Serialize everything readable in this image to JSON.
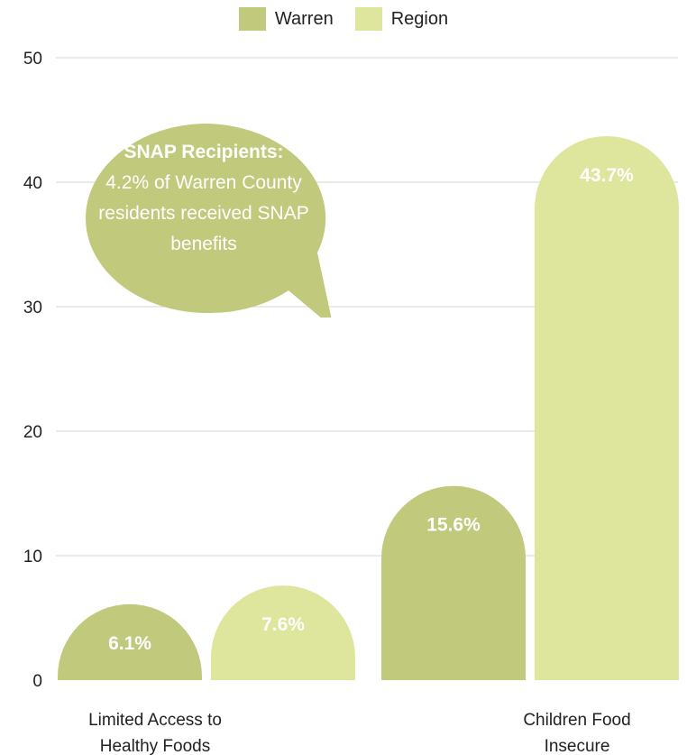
{
  "chart_data": {
    "type": "bar",
    "categories": [
      "Limited Access to Healthy Foods",
      "Children Food Insecure"
    ],
    "category_lines": [
      [
        "Limited Access to",
        "Healthy Foods"
      ],
      [
        "Children Food",
        "Insecure"
      ]
    ],
    "series": [
      {
        "name": "Warren",
        "values": [
          6.1,
          15.6
        ],
        "labels": [
          "6.1%",
          "15.6%"
        ],
        "color": "#c1c97c"
      },
      {
        "name": "Region",
        "values": [
          7.6,
          43.7
        ],
        "labels": [
          "7.6%",
          "43.7%"
        ],
        "color": "#dde69c"
      }
    ],
    "ylim": [
      0,
      50
    ],
    "yticks": [
      0,
      10,
      20,
      30,
      40,
      50
    ],
    "grid": true,
    "legend_position": "top-center",
    "bar_style": "rounded-top",
    "title": "",
    "xlabel": "",
    "ylabel": ""
  },
  "callout": {
    "title": "SNAP Recipients:",
    "body": "4.2% of Warren County residents received SNAP benefits",
    "color": "#c1c97c"
  }
}
